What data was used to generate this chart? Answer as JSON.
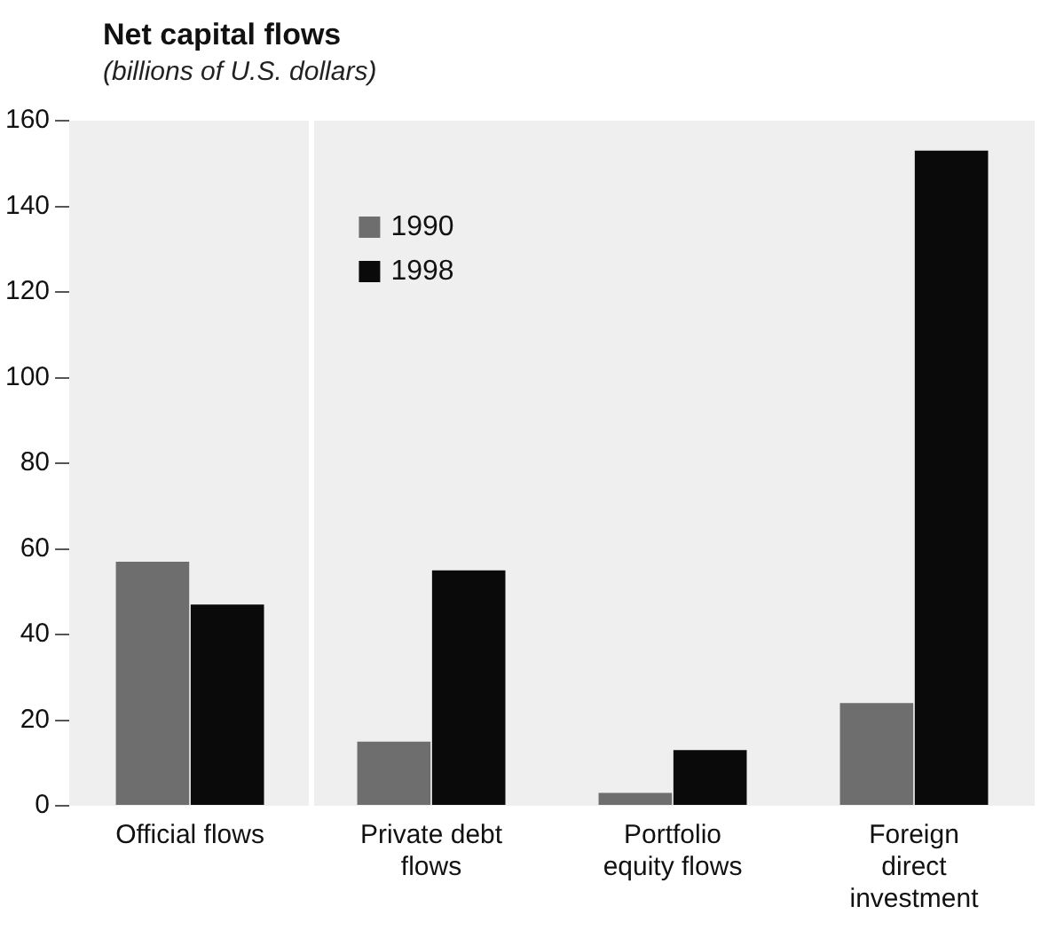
{
  "chart_data": {
    "type": "bar",
    "title": "Net capital flows",
    "subtitle": "(billions of U.S. dollars)",
    "categories": [
      "Official flows",
      "Private debt flows",
      "Portfolio equity flows",
      "Foreign direct investment"
    ],
    "series": [
      {
        "name": "1990",
        "color": "#6e6e6e",
        "values": [
          57,
          15,
          3,
          24
        ]
      },
      {
        "name": "1998",
        "color": "#0a0a0a",
        "values": [
          47,
          55,
          13,
          153
        ]
      }
    ],
    "ylim": [
      0,
      160
    ],
    "yticks": [
      0,
      20,
      40,
      60,
      80,
      100,
      120,
      140,
      160
    ],
    "grid": false,
    "legend": "top left"
  }
}
